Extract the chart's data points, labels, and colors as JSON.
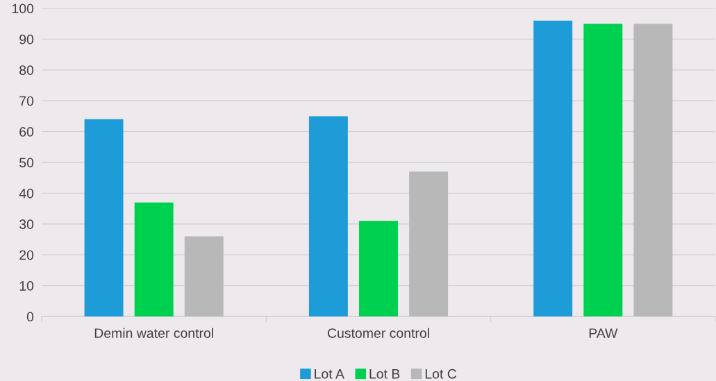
{
  "chart_data": {
    "type": "bar",
    "categories": [
      "Demin water control",
      "Customer control",
      "PAW"
    ],
    "series": [
      {
        "name": "Lot A",
        "color": "#1e9cd8",
        "values": [
          64,
          65,
          96
        ]
      },
      {
        "name": "Lot B",
        "color": "#00d050",
        "values": [
          37,
          31,
          95
        ]
      },
      {
        "name": "Lot C",
        "color": "#b8b8b8",
        "values": [
          26,
          47,
          95
        ]
      }
    ],
    "ylim": [
      0,
      100
    ],
    "yticks": [
      0,
      10,
      20,
      30,
      40,
      50,
      60,
      70,
      80,
      90,
      100
    ],
    "grid": "y",
    "legend": "bottom"
  }
}
